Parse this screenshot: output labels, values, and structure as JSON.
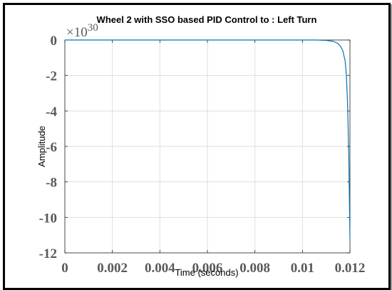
{
  "chart_data": {
    "type": "line",
    "title": "Wheel 2 with SSO based PID Control to : Left Turn",
    "xlabel": "Time (seconds)",
    "ylabel": "Amplitude",
    "y_exponent_label": "×10",
    "y_exponent_power": "30",
    "xlim": [
      0,
      0.012
    ],
    "ylim": [
      -12,
      0
    ],
    "x_ticks": [
      0,
      0.002,
      0.004,
      0.006,
      0.008,
      0.01,
      0.012
    ],
    "x_tick_labels": [
      "0",
      "0.002",
      "0.004",
      "0.006",
      "0.008",
      "0.01",
      "0.012"
    ],
    "y_ticks": [
      0,
      -2,
      -4,
      -6,
      -8,
      -10,
      -12
    ],
    "y_tick_labels": [
      "0",
      "-2",
      "-4",
      "-6",
      "-8",
      "-10",
      "-12"
    ],
    "grid": true,
    "series": [
      {
        "color": "#0072BD",
        "x": [
          0,
          0.002,
          0.004,
          0.006,
          0.008,
          0.01,
          0.0106,
          0.011,
          0.0113,
          0.0115,
          0.0116,
          0.0117,
          0.0118,
          0.01185,
          0.0119,
          0.01195,
          0.012
        ],
        "y": [
          0,
          0,
          0,
          0,
          0,
          0,
          0,
          -0.02,
          -0.08,
          -0.2,
          -0.35,
          -0.6,
          -1.2,
          -2.0,
          -3.6,
          -6.5,
          -11.2
        ]
      }
    ]
  }
}
